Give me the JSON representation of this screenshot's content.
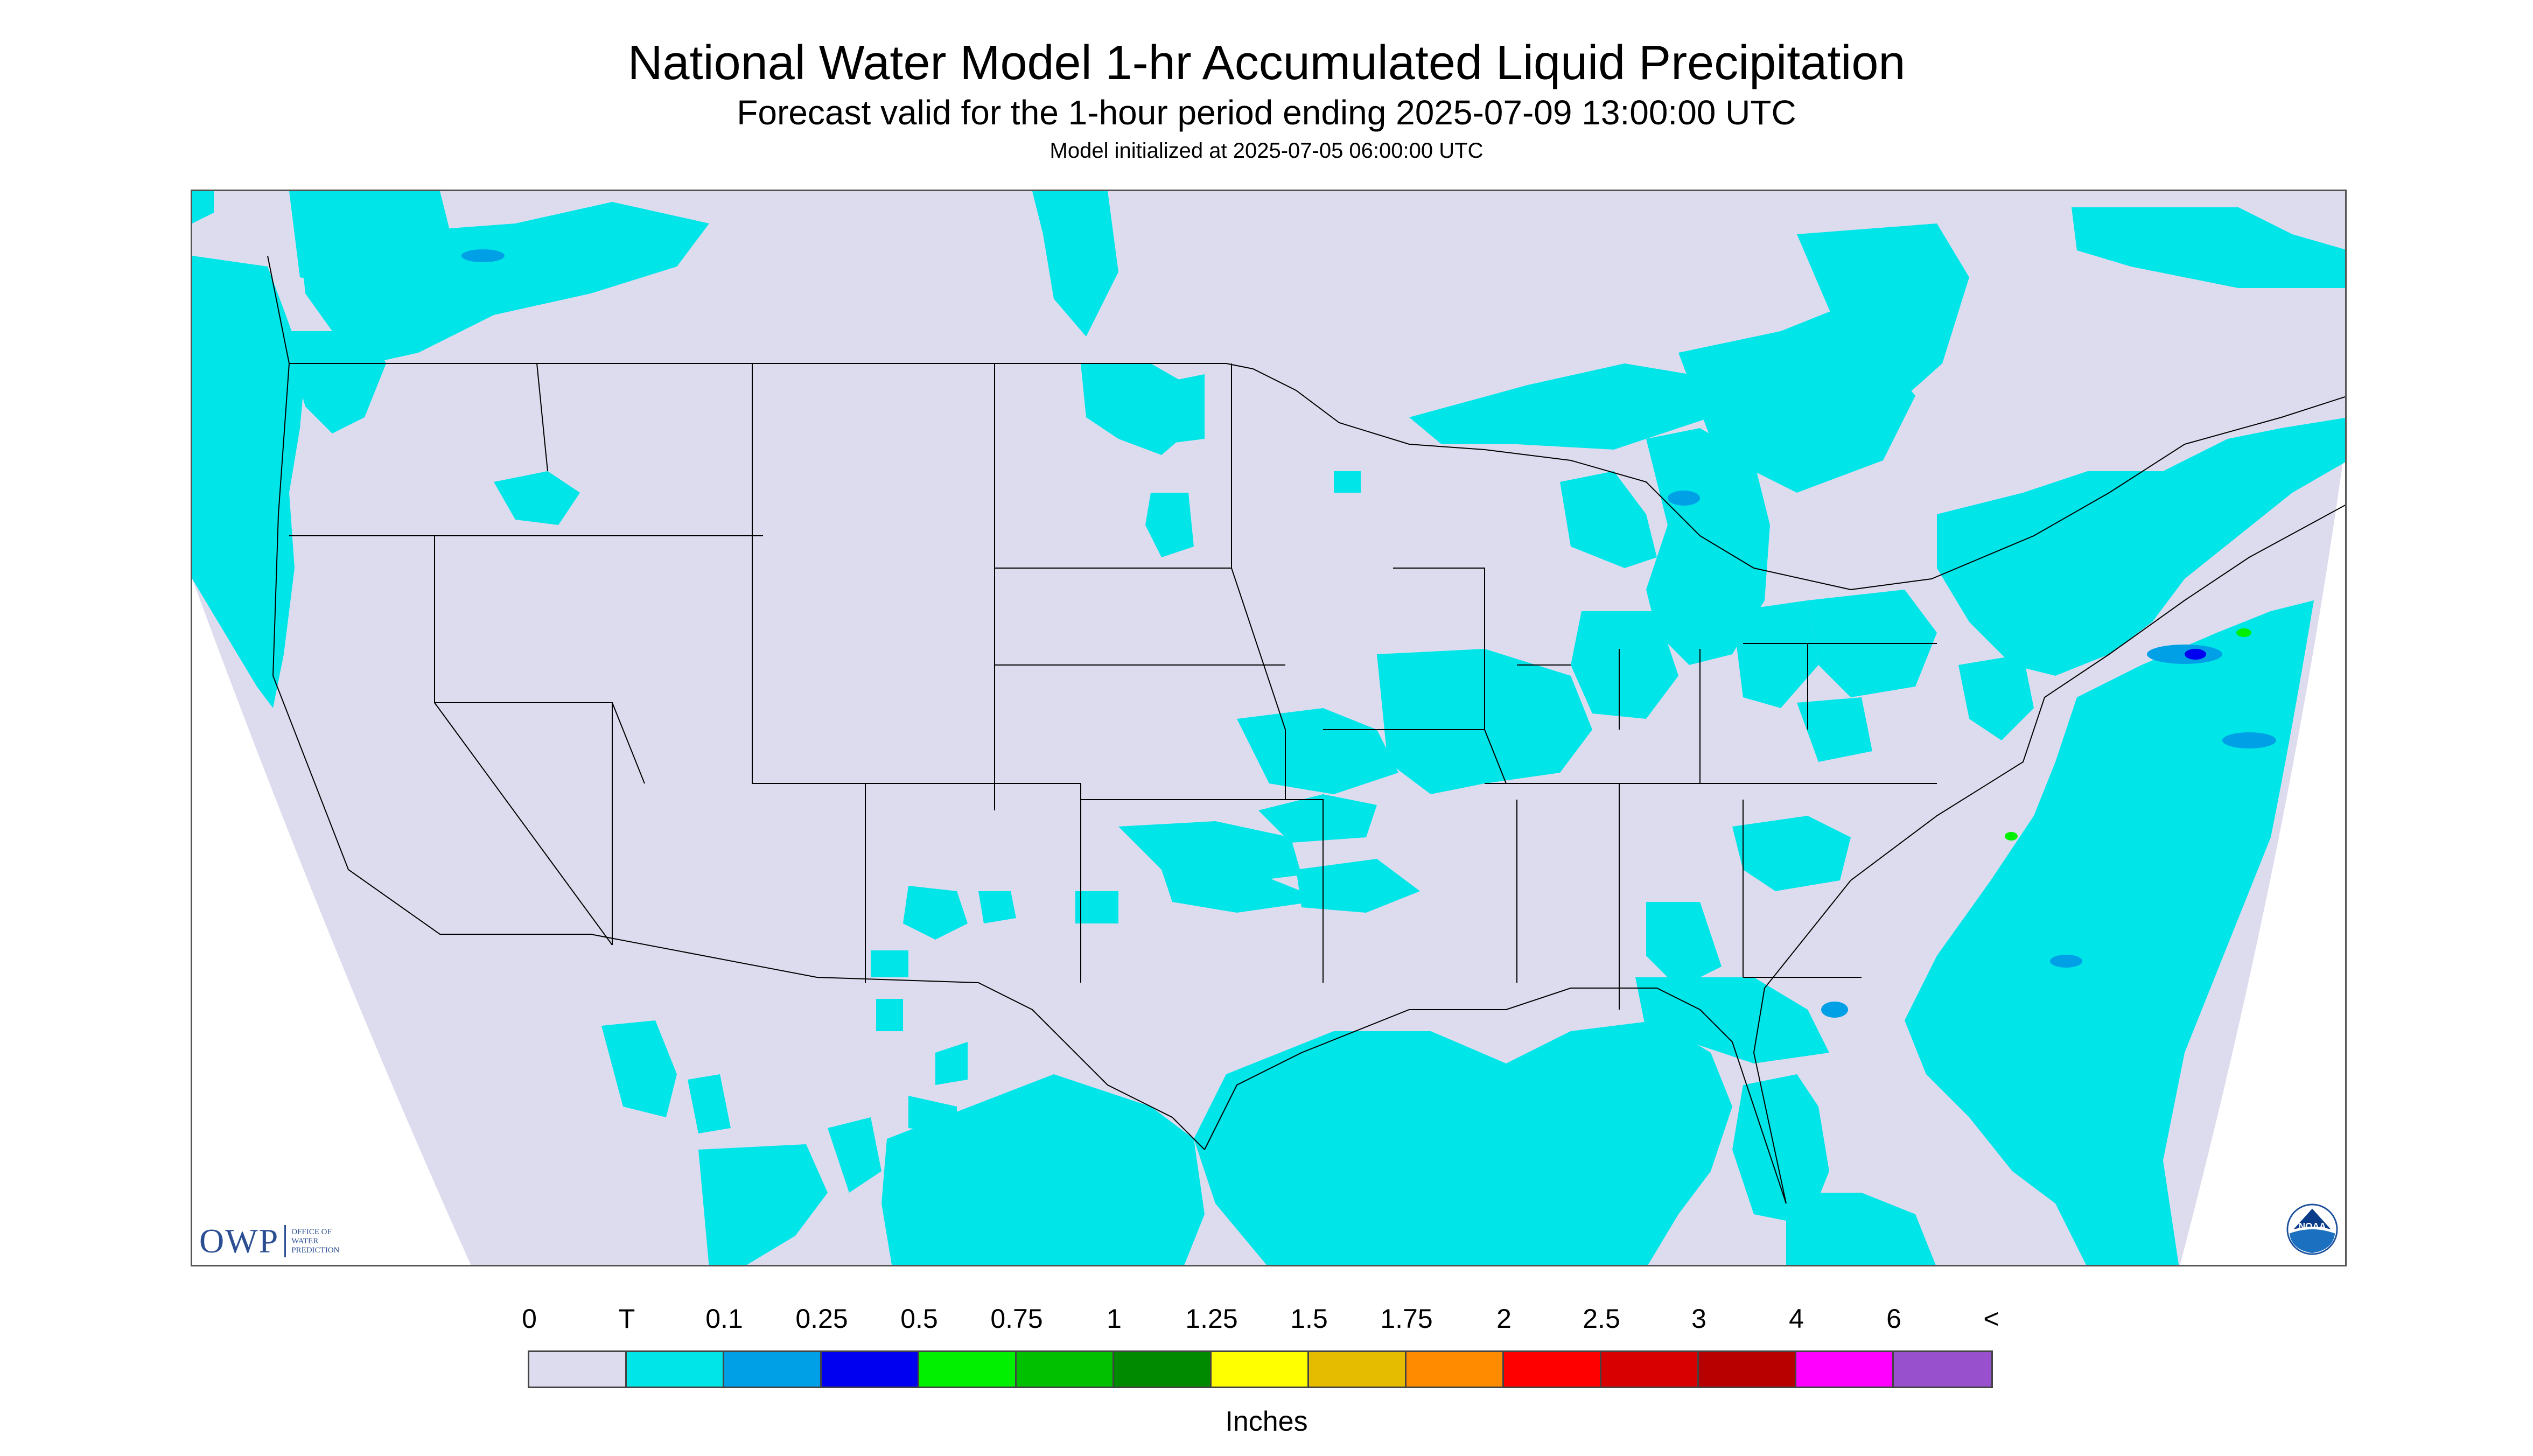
{
  "title": "National Water Model 1-hr Accumulated Liquid Precipitation",
  "subtitle": "Forecast valid for the 1-hour period ending 2025-07-09 13:00:00 UTC",
  "init": "Model initialized at 2025-07-05 06:00:00 UTC",
  "map": {
    "background_color": "#dcdcee",
    "precip_color": "#00e5e8",
    "light_blue": "#00a0e6",
    "boundary_color": "#000000"
  },
  "logos": {
    "owp_mark": "OWP",
    "owp_text": "Office of Water Prediction",
    "noaa_text": "NOAA",
    "owp_icon": "owp-logo-icon",
    "noaa_icon": "noaa-logo-icon"
  },
  "legend": {
    "labels": [
      "0",
      "T",
      "0.1",
      "0.25",
      "0.5",
      "0.75",
      "1",
      "1.25",
      "1.5",
      "1.75",
      "2",
      "2.5",
      "3",
      "4",
      "6",
      "<"
    ],
    "colors": [
      "#dcdcee",
      "#00e5e8",
      "#00a0e6",
      "#0000f0",
      "#00f000",
      "#00c000",
      "#008a00",
      "#ffff00",
      "#e6bc00",
      "#ff8c00",
      "#ff0000",
      "#d80000",
      "#b80000",
      "#ff00ff",
      "#9850cc"
    ],
    "units": "Inches"
  }
}
